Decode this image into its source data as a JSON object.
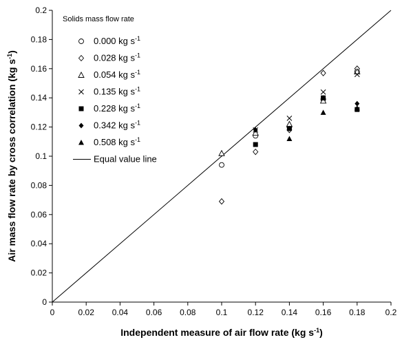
{
  "chart_data": {
    "type": "scatter",
    "xlabel": "Independent measure of air flow rate (kg s",
    "xlabel_sup": "-1",
    "xlabel_end": ")",
    "ylabel": "Air mass flow rate by cross correlation (kg s",
    "ylabel_sup": "-1",
    "ylabel_end": ")",
    "xlim": [
      0,
      0.2
    ],
    "ylim": [
      0,
      0.2
    ],
    "x_ticks": [
      "0",
      "0.02",
      "0.04",
      "0.06",
      "0.08",
      "0.1",
      "0.12",
      "0.14",
      "0.16",
      "0.18",
      "0.2"
    ],
    "y_ticks": [
      "0",
      "0.02",
      "0.04",
      "0.06",
      "0.08",
      "0.1",
      "0.12",
      "0.14",
      "0.16",
      "0.18",
      "0.2"
    ],
    "grid": false,
    "legend": {
      "title": "Solids mass flow rate",
      "placement": "top-left",
      "unit": "kg s",
      "unit_sup": "-1"
    },
    "series": [
      {
        "name": "0.000",
        "marker": "circle-open",
        "x": [
          0.1,
          0.12,
          0.14,
          0.16,
          0.18
        ],
        "y": [
          0.094,
          0.114,
          0.12,
          0.139,
          0.158
        ]
      },
      {
        "name": "0.028",
        "marker": "diamond-open",
        "x": [
          0.1,
          0.12,
          0.14,
          0.16,
          0.18
        ],
        "y": [
          0.069,
          0.103,
          0.118,
          0.157,
          0.16
        ]
      },
      {
        "name": "0.054",
        "marker": "triangle-open",
        "x": [
          0.1,
          0.12,
          0.14,
          0.16,
          0.18
        ],
        "y": [
          0.102,
          0.116,
          0.122,
          0.138,
          0.158
        ]
      },
      {
        "name": "0.135",
        "marker": "cross",
        "x": [
          0.12,
          0.14,
          0.16,
          0.18
        ],
        "y": [
          0.118,
          0.126,
          0.144,
          0.156
        ]
      },
      {
        "name": "0.228",
        "marker": "square-filled",
        "x": [
          0.12,
          0.14,
          0.16,
          0.18
        ],
        "y": [
          0.108,
          0.119,
          0.14,
          0.132
        ]
      },
      {
        "name": "0.342",
        "marker": "diamond-filled",
        "x": [
          0.12,
          0.14,
          0.16,
          0.18
        ],
        "y": [
          0.118,
          0.119,
          0.14,
          0.136
        ]
      },
      {
        "name": "0.508",
        "marker": "triangle-filled",
        "x": [
          0.14,
          0.16,
          0.18
        ],
        "y": [
          0.112,
          0.13,
          0.133
        ]
      }
    ],
    "reference_line": {
      "name": "Equal value line",
      "x": [
        0,
        0.2
      ],
      "y": [
        0,
        0.2
      ]
    }
  }
}
